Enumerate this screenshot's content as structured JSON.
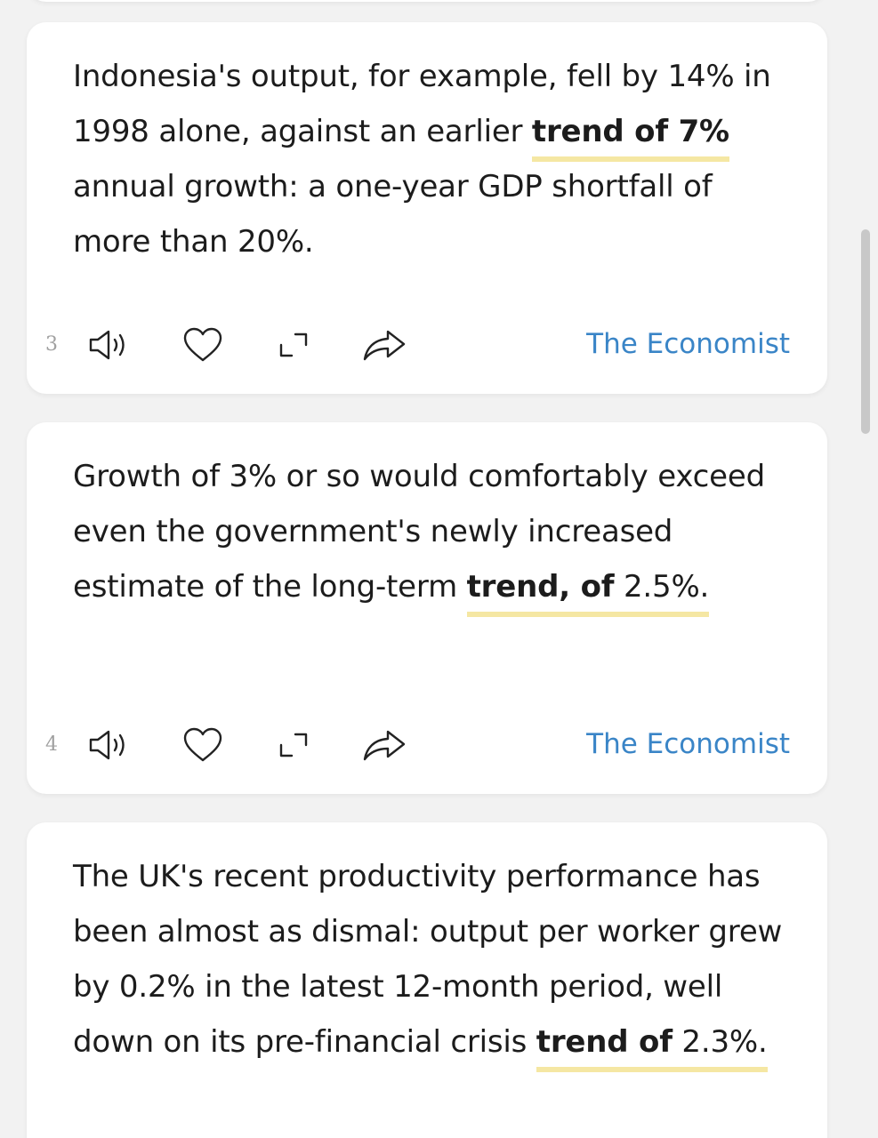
{
  "colors": {
    "page_bg": "#f2f2f2",
    "card_bg": "#ffffff",
    "text": "#1c1c1c",
    "highlight_underline": "#f5e7a3",
    "source_link": "#3a85c7",
    "index": "#a0a0a0"
  },
  "icons": [
    "speaker-icon",
    "heart-icon",
    "expand-icon",
    "share-icon"
  ],
  "cards": [
    {
      "before": "Indonesia's output, for example, fell by 14% in 1998 alone, against an earlier ",
      "highlight": "trend of",
      "highlight_tail": " 7%",
      "after": " annual growth: a one-year GDP shortfall of more than 20%.",
      "index": "3",
      "source": "The Economist"
    },
    {
      "before": "Growth of 3% or so would comfortably exceed even the government's newly increased estimate of the long-term ",
      "highlight": "trend, of",
      "highlight_tail": " 2.5%.",
      "after": "",
      "index": "4",
      "source": "The Economist"
    },
    {
      "before": "The UK's recent productivity performance has been almost as dismal: output per worker grew by 0.2% in the latest 12-month period, well down on its pre-financial crisis ",
      "highlight": "trend of",
      "highlight_tail": " 2.3%.",
      "after": "",
      "index": "",
      "source": ""
    }
  ]
}
